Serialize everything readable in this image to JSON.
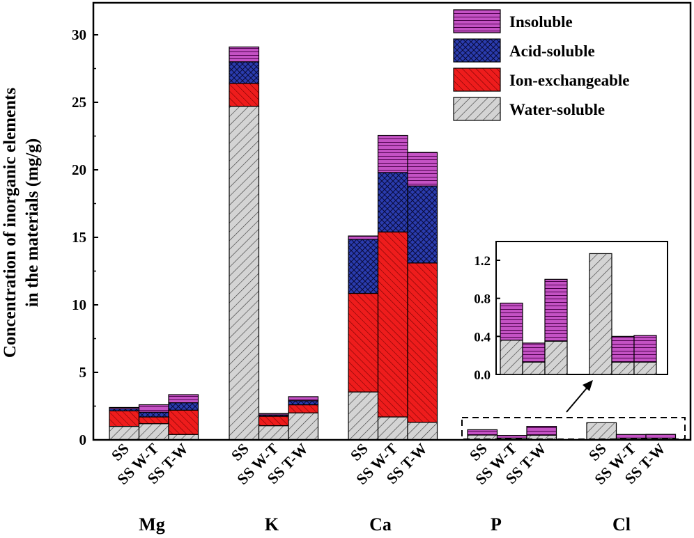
{
  "chart_data": {
    "type": "bar",
    "stacked": true,
    "ylabel_lines": [
      "Concentration of inorganic elements",
      "in the materials (mg/g)"
    ],
    "ylim": [
      0,
      31
    ],
    "yticks": [
      0,
      5,
      10,
      15,
      20,
      25,
      30
    ],
    "legend_position": "top-right",
    "series": [
      {
        "name": "Water-soluble",
        "color": "#d4d4d4",
        "pattern": "diagonal-lines"
      },
      {
        "name": "Ion-exchangeable",
        "color": "#ee1c1c",
        "pattern": "dense-diagonal-lines"
      },
      {
        "name": "Acid-soluble",
        "color": "#2a3cae",
        "pattern": "crosshatch"
      },
      {
        "name": "Insoluble",
        "color": "#c452c4",
        "pattern": "horizontal-lines"
      }
    ],
    "bar_labels": [
      "SS",
      "SS W-T",
      "SS T-W"
    ],
    "groups": [
      {
        "label": "Mg",
        "bars": [
          {
            "label": "SS",
            "values": [
              1.0,
              1.15,
              0.15,
              0.1
            ]
          },
          {
            "label": "SS W-T",
            "values": [
              1.2,
              0.5,
              0.35,
              0.55
            ]
          },
          {
            "label": "SS T-W",
            "values": [
              0.4,
              1.8,
              0.55,
              0.6
            ]
          }
        ]
      },
      {
        "label": "K",
        "bars": [
          {
            "label": "SS",
            "values": [
              24.7,
              1.7,
              1.6,
              1.1
            ]
          },
          {
            "label": "SS W-T",
            "values": [
              1.05,
              0.7,
              0.1,
              0.1
            ]
          },
          {
            "label": "SS T-W",
            "values": [
              2.0,
              0.6,
              0.3,
              0.3
            ]
          }
        ]
      },
      {
        "label": "Ca",
        "bars": [
          {
            "label": "SS",
            "values": [
              3.55,
              7.3,
              4.0,
              0.25
            ]
          },
          {
            "label": "SS W-T",
            "values": [
              1.7,
              13.7,
              4.4,
              2.75
            ]
          },
          {
            "label": "SS T-W",
            "values": [
              1.3,
              11.8,
              5.7,
              2.5
            ]
          }
        ]
      },
      {
        "label": "P",
        "bars": [
          {
            "label": "SS",
            "values": [
              0.36,
              0,
              0,
              0.39
            ]
          },
          {
            "label": "SS W-T",
            "values": [
              0.13,
              0,
              0,
              0.2
            ]
          },
          {
            "label": "SS T-W",
            "values": [
              0.35,
              0,
              0,
              0.65
            ]
          }
        ]
      },
      {
        "label": "Cl",
        "bars": [
          {
            "label": "SS",
            "values": [
              1.27,
              0,
              0,
              0
            ]
          },
          {
            "label": "SS W-T",
            "values": [
              0.13,
              0,
              0,
              0.27
            ]
          },
          {
            "label": "SS T-W",
            "values": [
              0.13,
              0,
              0,
              0.28
            ]
          }
        ]
      }
    ],
    "inset": {
      "ylim": [
        0,
        1.4
      ],
      "yticks": [
        "0.0",
        "0.4",
        "0.8",
        "1.2"
      ],
      "groups_shown": [
        "P",
        "Cl"
      ]
    }
  }
}
